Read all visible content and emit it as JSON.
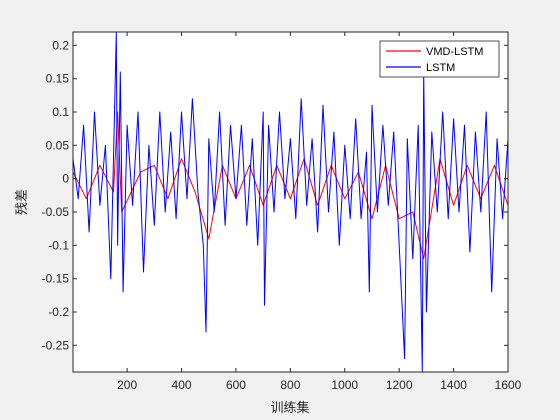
{
  "chart_data": {
    "type": "line",
    "title": "",
    "xlabel": "训练集",
    "ylabel": "残差",
    "xlim": [
      1,
      1600
    ],
    "ylim": [
      -0.29,
      0.22
    ],
    "xticks": [
      200,
      400,
      600,
      800,
      1000,
      1200,
      1400,
      1600
    ],
    "xtick_labels": [
      "200",
      "400",
      "600",
      "800",
      "1000",
      "1200",
      "1400",
      "1600"
    ],
    "yticks": [
      -0.25,
      -0.2,
      -0.15,
      -0.1,
      -0.05,
      0,
      0.05,
      0.1,
      0.15,
      0.2
    ],
    "ytick_labels": [
      "-0.25",
      "-0.2",
      "-0.15",
      "-0.1",
      "-0.05",
      "0",
      "0.05",
      "0.1",
      "0.15",
      "0.2"
    ],
    "grid": false,
    "legend_position": "top-right",
    "series": [
      {
        "name": "VMD-LSTM",
        "color": "#ff0000",
        "x": [
          1,
          50,
          100,
          150,
          165,
          180,
          250,
          300,
          350,
          400,
          450,
          500,
          550,
          600,
          650,
          700,
          750,
          800,
          850,
          900,
          950,
          1000,
          1050,
          1100,
          1150,
          1200,
          1250,
          1290,
          1350,
          1400,
          1450,
          1500,
          1550,
          1600
        ],
        "y": [
          0.01,
          -0.03,
          0.02,
          -0.02,
          0.1,
          -0.05,
          0.01,
          0.02,
          -0.03,
          0.03,
          -0.02,
          -0.09,
          0.02,
          -0.03,
          0.02,
          -0.04,
          0.02,
          -0.03,
          0.03,
          -0.04,
          0.02,
          -0.03,
          0.01,
          -0.06,
          0.02,
          -0.06,
          -0.05,
          -0.12,
          0.03,
          -0.04,
          0.02,
          -0.03,
          0.02,
          -0.04
        ]
      },
      {
        "name": "LSTM",
        "color": "#0000ff",
        "x": [
          1,
          20,
          40,
          60,
          80,
          100,
          120,
          140,
          160,
          165,
          175,
          185,
          200,
          220,
          240,
          260,
          280,
          300,
          320,
          340,
          360,
          380,
          400,
          420,
          440,
          460,
          480,
          490,
          500,
          520,
          540,
          560,
          580,
          600,
          620,
          640,
          660,
          680,
          700,
          705,
          720,
          740,
          760,
          780,
          800,
          820,
          840,
          860,
          880,
          900,
          920,
          940,
          960,
          980,
          1000,
          1020,
          1040,
          1060,
          1080,
          1090,
          1100,
          1120,
          1140,
          1160,
          1180,
          1200,
          1220,
          1230,
          1250,
          1270,
          1285,
          1290,
          1300,
          1320,
          1340,
          1360,
          1380,
          1400,
          1420,
          1440,
          1460,
          1480,
          1500,
          1520,
          1540,
          1560,
          1580,
          1600
        ],
        "y": [
          0.03,
          -0.03,
          0.08,
          -0.08,
          0.1,
          -0.04,
          0.05,
          -0.15,
          0.22,
          -0.1,
          0.16,
          -0.17,
          0.08,
          -0.04,
          0.1,
          -0.14,
          0.05,
          -0.07,
          0.1,
          -0.05,
          0.07,
          -0.06,
          0.1,
          -0.03,
          0.12,
          -0.02,
          -0.1,
          -0.23,
          0.06,
          -0.05,
          0.1,
          -0.07,
          0.08,
          -0.03,
          0.08,
          -0.07,
          0.06,
          -0.1,
          0.1,
          -0.19,
          0.08,
          -0.05,
          0.1,
          -0.03,
          0.06,
          -0.06,
          0.12,
          -0.04,
          0.06,
          -0.08,
          0.11,
          -0.05,
          0.07,
          -0.1,
          0.05,
          -0.06,
          0.09,
          -0.06,
          0.04,
          -0.17,
          0.11,
          -0.05,
          0.08,
          -0.04,
          0.07,
          -0.1,
          -0.27,
          0.06,
          -0.12,
          0.08,
          -0.29,
          0.16,
          -0.2,
          0.07,
          -0.05,
          0.1,
          -0.06,
          0.09,
          -0.05,
          0.08,
          -0.11,
          0.07,
          -0.05,
          0.1,
          -0.17,
          0.06,
          -0.06,
          0.06
        ]
      }
    ]
  }
}
